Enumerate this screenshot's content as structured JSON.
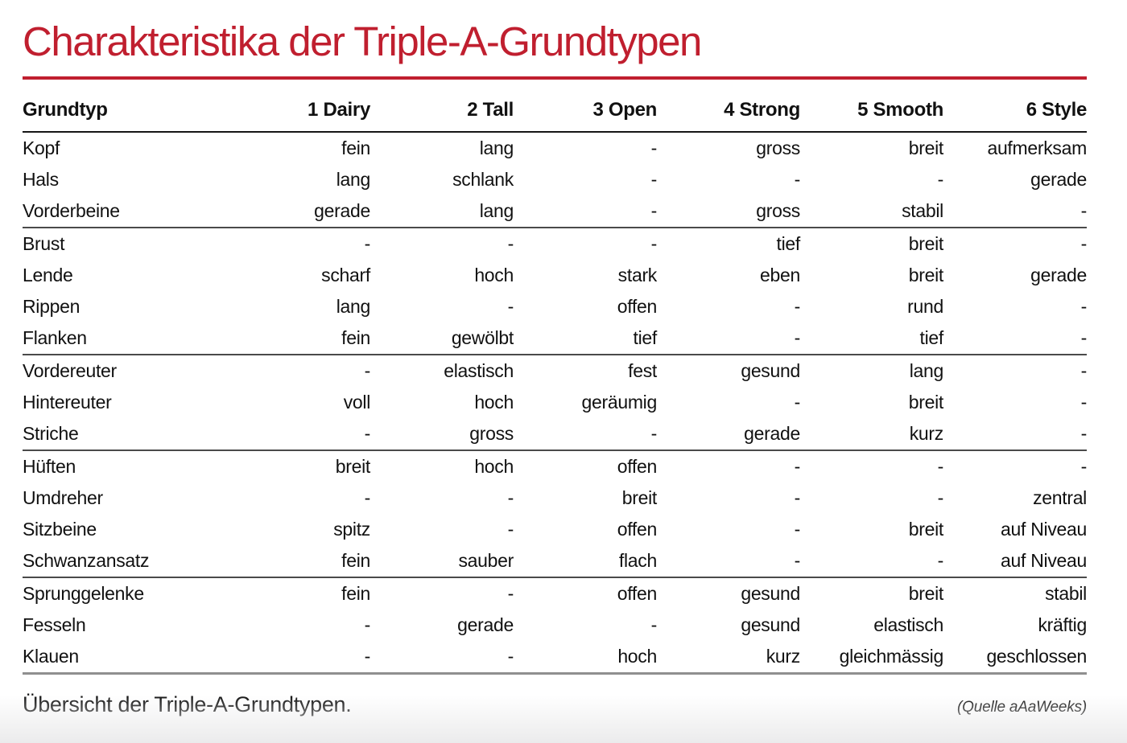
{
  "title": "Charakteristika der Triple-A-Grundtypen",
  "accent_color": "#c01f2f",
  "table": {
    "columns": [
      "Grundtyp",
      "1 Dairy",
      "2 Tall",
      "3 Open",
      "4 Strong",
      "5 Smooth",
      "6 Style"
    ],
    "rows": [
      {
        "label": "Kopf",
        "values": [
          "fein",
          "lang",
          "-",
          "gross",
          "breit",
          "aufmerksam"
        ],
        "group_end": false
      },
      {
        "label": "Hals",
        "values": [
          "lang",
          "schlank",
          "-",
          "-",
          "-",
          "gerade"
        ],
        "group_end": false
      },
      {
        "label": "Vorderbeine",
        "values": [
          "gerade",
          "lang",
          "-",
          "gross",
          "stabil",
          "-"
        ],
        "group_end": true
      },
      {
        "label": "Brust",
        "values": [
          "-",
          "-",
          "-",
          "tief",
          "breit",
          "-"
        ],
        "group_end": false
      },
      {
        "label": "Lende",
        "values": [
          "scharf",
          "hoch",
          "stark",
          "eben",
          "breit",
          "gerade"
        ],
        "group_end": false
      },
      {
        "label": "Rippen",
        "values": [
          "lang",
          "-",
          "offen",
          "-",
          "rund",
          "-"
        ],
        "group_end": false
      },
      {
        "label": "Flanken",
        "values": [
          "fein",
          "gewölbt",
          "tief",
          "-",
          "tief",
          "-"
        ],
        "group_end": true
      },
      {
        "label": "Vordereuter",
        "values": [
          "-",
          "elastisch",
          "fest",
          "gesund",
          "lang",
          "-"
        ],
        "group_end": false
      },
      {
        "label": "Hintereuter",
        "values": [
          "voll",
          "hoch",
          "geräumig",
          "-",
          "breit",
          "-"
        ],
        "group_end": false
      },
      {
        "label": "Striche",
        "values": [
          "-",
          "gross",
          "-",
          "gerade",
          "kurz",
          "-"
        ],
        "group_end": true
      },
      {
        "label": "Hüften",
        "values": [
          "breit",
          "hoch",
          "offen",
          "-",
          "-",
          "-"
        ],
        "group_end": false
      },
      {
        "label": "Umdreher",
        "values": [
          "-",
          "-",
          "breit",
          "-",
          "-",
          "zentral"
        ],
        "group_end": false
      },
      {
        "label": "Sitzbeine",
        "values": [
          "spitz",
          "-",
          "offen",
          "-",
          "breit",
          "auf Niveau"
        ],
        "group_end": false
      },
      {
        "label": "Schwanzansatz",
        "values": [
          "fein",
          "sauber",
          "flach",
          "-",
          "-",
          "auf Niveau"
        ],
        "group_end": true
      },
      {
        "label": "Sprunggelenke",
        "values": [
          "fein",
          "-",
          "offen",
          "gesund",
          "breit",
          "stabil"
        ],
        "group_end": false
      },
      {
        "label": "Fesseln",
        "values": [
          "-",
          "gerade",
          "-",
          "gesund",
          "elastisch",
          "kräftig"
        ],
        "group_end": false
      },
      {
        "label": "Klauen",
        "values": [
          "-",
          "-",
          "hoch",
          "kurz",
          "gleichmässig",
          "geschlossen"
        ],
        "group_end": false
      }
    ]
  },
  "footer": {
    "caption": "Übersicht der Triple-A-Grundtypen.",
    "source": "(Quelle aAaWeeks)"
  }
}
